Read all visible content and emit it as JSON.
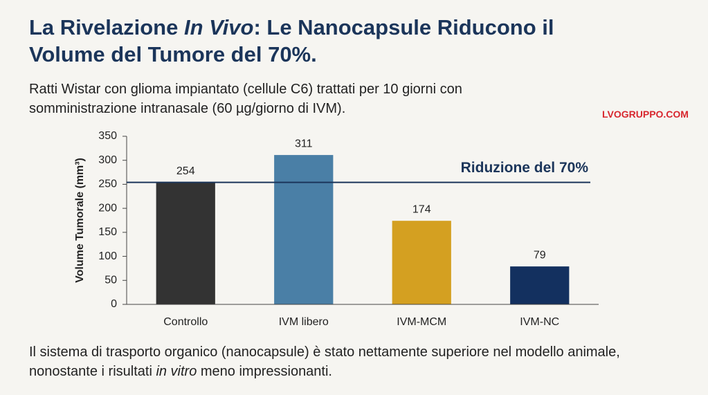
{
  "header": {
    "title": [
      "La Rivelazione ",
      "In Vivo",
      ": Le Nanocapsule Riducono il Volume del Tumore del 70%."
    ],
    "subtitle": "Ratti Wistar con glioma impiantato (cellule C6) trattati per 10 giorni con somministrazione intranasale (60 µg/giorno di IVM).",
    "logo": "LVOGRUPPO.COM"
  },
  "chart_data": {
    "type": "bar",
    "y_label": "Volume Tumorale (mm³)",
    "categories": [
      "Controllo",
      "IVM libero",
      "IVM-MCM",
      "IVM-NC"
    ],
    "values": [
      254,
      311,
      174,
      79
    ],
    "colors": [
      "#333333",
      "#4a7fa6",
      "#d4a021",
      "#13305f"
    ],
    "ylim": [
      0,
      350
    ],
    "yticks": [
      0,
      50,
      100,
      150,
      200,
      250,
      300,
      350
    ],
    "grid": false,
    "reference_line": {
      "value": 254,
      "label": "Riduzione del 70%",
      "color": "#1b355a"
    }
  },
  "footer": [
    "Il sistema di trasporto organico (nanocapsule) è stato nettamente superiore nel modello animale, nonostante i risultati ",
    "in vitro",
    " meno impressionanti."
  ]
}
